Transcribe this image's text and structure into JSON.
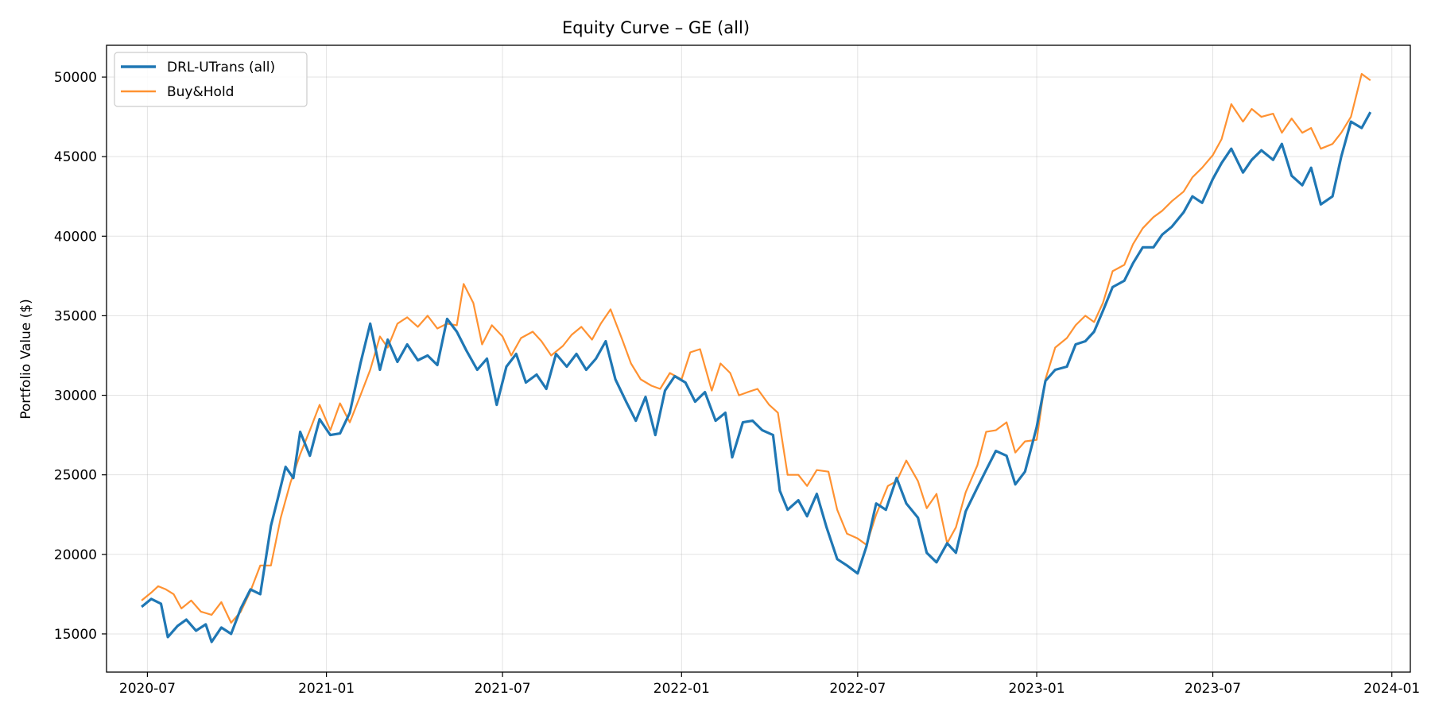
{
  "chart_data": {
    "type": "line",
    "title": "Equity Curve – GE (all)",
    "xlabel": "",
    "ylabel": "Portfolio Value ($)",
    "xlim": [
      "2020-05-20",
      "2024-01-20"
    ],
    "ylim": [
      12600,
      52000
    ],
    "grid": true,
    "legend_position": "top-left",
    "x_tick_labels": [
      "2020-07",
      "2021-01",
      "2021-07",
      "2022-01",
      "2022-07",
      "2023-01",
      "2023-07",
      "2024-01"
    ],
    "x_ticks": [
      "2020-07-01",
      "2021-01-01",
      "2021-07-01",
      "2022-01-01",
      "2022-07-01",
      "2023-01-01",
      "2023-07-01",
      "2024-01-01"
    ],
    "y_ticks": [
      15000,
      20000,
      25000,
      30000,
      35000,
      40000,
      45000,
      50000
    ],
    "series": [
      {
        "name": "DRL-UTrans (all)",
        "color": "#1f77b4",
        "points": [
          [
            "2020-06-25",
            16700
          ],
          [
            "2020-07-05",
            17200
          ],
          [
            "2020-07-15",
            16900
          ],
          [
            "2020-07-22",
            14800
          ],
          [
            "2020-08-01",
            15500
          ],
          [
            "2020-08-10",
            15900
          ],
          [
            "2020-08-20",
            15200
          ],
          [
            "2020-08-30",
            15600
          ],
          [
            "2020-09-05",
            14500
          ],
          [
            "2020-09-15",
            15400
          ],
          [
            "2020-09-25",
            15000
          ],
          [
            "2020-10-05",
            16600
          ],
          [
            "2020-10-15",
            17800
          ],
          [
            "2020-10-25",
            17500
          ],
          [
            "2020-11-05",
            21800
          ],
          [
            "2020-11-12",
            23500
          ],
          [
            "2020-11-20",
            25500
          ],
          [
            "2020-11-28",
            24800
          ],
          [
            "2020-12-05",
            27700
          ],
          [
            "2020-12-15",
            26200
          ],
          [
            "2020-12-25",
            28500
          ],
          [
            "2021-01-05",
            27500
          ],
          [
            "2021-01-15",
            27600
          ],
          [
            "2021-01-25",
            28900
          ],
          [
            "2021-02-05",
            32000
          ],
          [
            "2021-02-15",
            34500
          ],
          [
            "2021-02-25",
            31600
          ],
          [
            "2021-03-05",
            33500
          ],
          [
            "2021-03-15",
            32100
          ],
          [
            "2021-03-25",
            33200
          ],
          [
            "2021-04-05",
            32200
          ],
          [
            "2021-04-15",
            32500
          ],
          [
            "2021-04-25",
            31900
          ],
          [
            "2021-05-05",
            34800
          ],
          [
            "2021-05-15",
            34000
          ],
          [
            "2021-05-25",
            32800
          ],
          [
            "2021-06-05",
            31600
          ],
          [
            "2021-06-15",
            32300
          ],
          [
            "2021-06-25",
            29400
          ],
          [
            "2021-07-05",
            31800
          ],
          [
            "2021-07-15",
            32600
          ],
          [
            "2021-07-25",
            30800
          ],
          [
            "2021-08-05",
            31300
          ],
          [
            "2021-08-15",
            30400
          ],
          [
            "2021-08-25",
            32600
          ],
          [
            "2021-09-05",
            31800
          ],
          [
            "2021-09-15",
            32600
          ],
          [
            "2021-09-25",
            31600
          ],
          [
            "2021-10-05",
            32300
          ],
          [
            "2021-10-15",
            33400
          ],
          [
            "2021-10-25",
            31000
          ],
          [
            "2021-11-05",
            29600
          ],
          [
            "2021-11-15",
            28400
          ],
          [
            "2021-11-25",
            29900
          ],
          [
            "2021-12-05",
            27500
          ],
          [
            "2021-12-15",
            30300
          ],
          [
            "2021-12-25",
            31200
          ],
          [
            "2022-01-05",
            30800
          ],
          [
            "2022-01-15",
            29600
          ],
          [
            "2022-01-25",
            30200
          ],
          [
            "2022-02-05",
            28400
          ],
          [
            "2022-02-15",
            28900
          ],
          [
            "2022-02-22",
            26100
          ],
          [
            "2022-03-05",
            28300
          ],
          [
            "2022-03-15",
            28400
          ],
          [
            "2022-03-25",
            27800
          ],
          [
            "2022-04-05",
            27500
          ],
          [
            "2022-04-12",
            24000
          ],
          [
            "2022-04-20",
            22800
          ],
          [
            "2022-05-01",
            23400
          ],
          [
            "2022-05-10",
            22400
          ],
          [
            "2022-05-20",
            23800
          ],
          [
            "2022-05-30",
            21700
          ],
          [
            "2022-06-10",
            19700
          ],
          [
            "2022-06-20",
            19300
          ],
          [
            "2022-07-01",
            18800
          ],
          [
            "2022-07-10",
            20500
          ],
          [
            "2022-07-20",
            23200
          ],
          [
            "2022-07-30",
            22800
          ],
          [
            "2022-08-10",
            24800
          ],
          [
            "2022-08-20",
            23200
          ],
          [
            "2022-09-01",
            22300
          ],
          [
            "2022-09-10",
            20100
          ],
          [
            "2022-09-20",
            19500
          ],
          [
            "2022-10-01",
            20700
          ],
          [
            "2022-10-10",
            20100
          ],
          [
            "2022-10-20",
            22700
          ],
          [
            "2022-11-01",
            24200
          ],
          [
            "2022-11-10",
            25300
          ],
          [
            "2022-11-20",
            26500
          ],
          [
            "2022-12-01",
            26200
          ],
          [
            "2022-12-10",
            24400
          ],
          [
            "2022-12-20",
            25200
          ],
          [
            "2023-01-01",
            28000
          ],
          [
            "2023-01-10",
            30900
          ],
          [
            "2023-01-20",
            31600
          ],
          [
            "2023-02-01",
            31800
          ],
          [
            "2023-02-10",
            33200
          ],
          [
            "2023-02-20",
            33400
          ],
          [
            "2023-03-01",
            34000
          ],
          [
            "2023-03-10",
            35300
          ],
          [
            "2023-03-20",
            36800
          ],
          [
            "2023-04-01",
            37200
          ],
          [
            "2023-04-10",
            38300
          ],
          [
            "2023-04-20",
            39300
          ],
          [
            "2023-05-01",
            39300
          ],
          [
            "2023-05-10",
            40100
          ],
          [
            "2023-05-20",
            40600
          ],
          [
            "2023-06-01",
            41500
          ],
          [
            "2023-06-10",
            42500
          ],
          [
            "2023-06-20",
            42100
          ],
          [
            "2023-07-01",
            43600
          ],
          [
            "2023-07-10",
            44600
          ],
          [
            "2023-07-20",
            45500
          ],
          [
            "2023-08-01",
            44000
          ],
          [
            "2023-08-10",
            44800
          ],
          [
            "2023-08-20",
            45400
          ],
          [
            "2023-09-01",
            44800
          ],
          [
            "2023-09-10",
            45800
          ],
          [
            "2023-09-20",
            43800
          ],
          [
            "2023-10-01",
            43200
          ],
          [
            "2023-10-10",
            44300
          ],
          [
            "2023-10-20",
            42000
          ],
          [
            "2023-11-01",
            42500
          ],
          [
            "2023-11-10",
            45000
          ],
          [
            "2023-11-20",
            47200
          ],
          [
            "2023-12-01",
            46800
          ],
          [
            "2023-12-10",
            47800
          ]
        ]
      },
      {
        "name": "Buy&Hold",
        "color": "#ff7f0e",
        "points": [
          [
            "2020-06-25",
            17100
          ],
          [
            "2020-07-05",
            17600
          ],
          [
            "2020-07-12",
            18000
          ],
          [
            "2020-07-20",
            17800
          ],
          [
            "2020-07-28",
            17500
          ],
          [
            "2020-08-05",
            16600
          ],
          [
            "2020-08-15",
            17100
          ],
          [
            "2020-08-25",
            16400
          ],
          [
            "2020-09-05",
            16200
          ],
          [
            "2020-09-15",
            17000
          ],
          [
            "2020-09-25",
            15700
          ],
          [
            "2020-10-05",
            16400
          ],
          [
            "2020-10-15",
            17700
          ],
          [
            "2020-10-25",
            19300
          ],
          [
            "2020-11-05",
            19300
          ],
          [
            "2020-11-15",
            22300
          ],
          [
            "2020-11-25",
            24500
          ],
          [
            "2020-12-05",
            26300
          ],
          [
            "2020-12-15",
            27800
          ],
          [
            "2020-12-25",
            29400
          ],
          [
            "2021-01-05",
            27800
          ],
          [
            "2021-01-15",
            29500
          ],
          [
            "2021-01-25",
            28300
          ],
          [
            "2021-02-05",
            30000
          ],
          [
            "2021-02-15",
            31600
          ],
          [
            "2021-02-25",
            33700
          ],
          [
            "2021-03-05",
            33000
          ],
          [
            "2021-03-15",
            34500
          ],
          [
            "2021-03-25",
            34900
          ],
          [
            "2021-04-05",
            34300
          ],
          [
            "2021-04-15",
            35000
          ],
          [
            "2021-04-25",
            34200
          ],
          [
            "2021-05-05",
            34500
          ],
          [
            "2021-05-15",
            34400
          ],
          [
            "2021-05-22",
            37000
          ],
          [
            "2021-06-01",
            35800
          ],
          [
            "2021-06-10",
            33200
          ],
          [
            "2021-06-20",
            34400
          ],
          [
            "2021-07-01",
            33700
          ],
          [
            "2021-07-10",
            32500
          ],
          [
            "2021-07-20",
            33600
          ],
          [
            "2021-08-01",
            34000
          ],
          [
            "2021-08-10",
            33400
          ],
          [
            "2021-08-20",
            32500
          ],
          [
            "2021-09-01",
            33100
          ],
          [
            "2021-09-10",
            33800
          ],
          [
            "2021-09-20",
            34300
          ],
          [
            "2021-10-01",
            33500
          ],
          [
            "2021-10-10",
            34500
          ],
          [
            "2021-10-20",
            35400
          ],
          [
            "2021-11-01",
            33500
          ],
          [
            "2021-11-10",
            32000
          ],
          [
            "2021-11-20",
            31000
          ],
          [
            "2021-12-01",
            30600
          ],
          [
            "2021-12-10",
            30400
          ],
          [
            "2021-12-20",
            31400
          ],
          [
            "2022-01-01",
            31000
          ],
          [
            "2022-01-10",
            32700
          ],
          [
            "2022-01-20",
            32900
          ],
          [
            "2022-02-01",
            30300
          ],
          [
            "2022-02-10",
            32000
          ],
          [
            "2022-02-20",
            31400
          ],
          [
            "2022-03-01",
            30000
          ],
          [
            "2022-03-10",
            30200
          ],
          [
            "2022-03-20",
            30400
          ],
          [
            "2022-04-01",
            29400
          ],
          [
            "2022-04-10",
            28900
          ],
          [
            "2022-04-20",
            25000
          ],
          [
            "2022-05-01",
            25000
          ],
          [
            "2022-05-10",
            24300
          ],
          [
            "2022-05-20",
            25300
          ],
          [
            "2022-06-01",
            25200
          ],
          [
            "2022-06-10",
            22800
          ],
          [
            "2022-06-20",
            21300
          ],
          [
            "2022-07-01",
            21000
          ],
          [
            "2022-07-10",
            20600
          ],
          [
            "2022-07-20",
            22500
          ],
          [
            "2022-08-01",
            24300
          ],
          [
            "2022-08-10",
            24600
          ],
          [
            "2022-08-20",
            25900
          ],
          [
            "2022-09-01",
            24600
          ],
          [
            "2022-09-10",
            22900
          ],
          [
            "2022-09-20",
            23800
          ],
          [
            "2022-10-01",
            20700
          ],
          [
            "2022-10-10",
            21700
          ],
          [
            "2022-10-20",
            23900
          ],
          [
            "2022-11-01",
            25600
          ],
          [
            "2022-11-10",
            27700
          ],
          [
            "2022-11-20",
            27800
          ],
          [
            "2022-12-01",
            28300
          ],
          [
            "2022-12-10",
            26400
          ],
          [
            "2022-12-20",
            27100
          ],
          [
            "2023-01-01",
            27200
          ],
          [
            "2023-01-10",
            31000
          ],
          [
            "2023-01-20",
            33000
          ],
          [
            "2023-02-01",
            33600
          ],
          [
            "2023-02-10",
            34400
          ],
          [
            "2023-02-20",
            35000
          ],
          [
            "2023-03-01",
            34600
          ],
          [
            "2023-03-10",
            35800
          ],
          [
            "2023-03-20",
            37800
          ],
          [
            "2023-04-01",
            38200
          ],
          [
            "2023-04-10",
            39500
          ],
          [
            "2023-04-20",
            40500
          ],
          [
            "2023-05-01",
            41200
          ],
          [
            "2023-05-10",
            41600
          ],
          [
            "2023-05-20",
            42200
          ],
          [
            "2023-06-01",
            42800
          ],
          [
            "2023-06-10",
            43700
          ],
          [
            "2023-06-20",
            44300
          ],
          [
            "2023-07-01",
            45100
          ],
          [
            "2023-07-10",
            46100
          ],
          [
            "2023-07-20",
            48300
          ],
          [
            "2023-08-01",
            47200
          ],
          [
            "2023-08-10",
            48000
          ],
          [
            "2023-08-20",
            47500
          ],
          [
            "2023-09-01",
            47700
          ],
          [
            "2023-09-10",
            46500
          ],
          [
            "2023-09-20",
            47400
          ],
          [
            "2023-10-01",
            46500
          ],
          [
            "2023-10-10",
            46800
          ],
          [
            "2023-10-20",
            45500
          ],
          [
            "2023-11-01",
            45800
          ],
          [
            "2023-11-10",
            46500
          ],
          [
            "2023-11-20",
            47500
          ],
          [
            "2023-12-01",
            50200
          ],
          [
            "2023-12-10",
            49800
          ]
        ]
      }
    ]
  }
}
